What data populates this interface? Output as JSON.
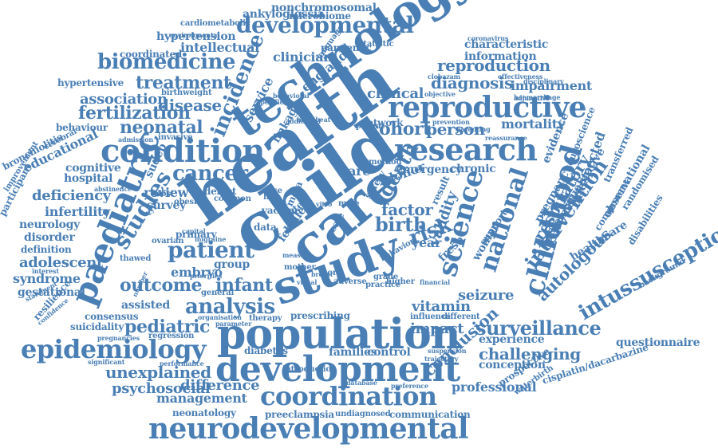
{
  "colors": {
    "word": "#4a7fb5",
    "background": "#ffffff"
  },
  "words": [
    "health",
    "child",
    "care",
    "population",
    "development",
    "study",
    "technology",
    "neurodevelopmental",
    "condition",
    "research",
    "reproductive",
    "paediatric",
    "epidemiology",
    "coordination",
    "childhood",
    "developmental",
    "science",
    "national",
    "intussusception",
    "surveillance",
    "patient",
    "studies",
    "analysis",
    "incidence",
    "cancer",
    "risk",
    "biomedicine",
    "intervention",
    "outcome",
    "infant",
    "death",
    "birth",
    "treatment",
    "neonatal",
    "pediatric",
    "cohort",
    "diagnosis",
    "reproduction",
    "fertilization",
    "association",
    "disease",
    "challenging",
    "unexplained",
    "autologous",
    "respiratory",
    "conclusion",
    "psychosocial",
    "difference",
    "management",
    "seizure",
    "vitamin",
    "impact",
    "factor",
    "person",
    "clinical",
    "clinician",
    "intellectual",
    "hypertension",
    "information",
    "characteristic",
    "impairment",
    "nonchromosomal",
    "ankyloglossia",
    "microbiome",
    "cardiometabolic",
    "coordinated",
    "hypertensive",
    "pandemic",
    "england",
    "service",
    "educational",
    "cognitive",
    "hospital",
    "deficiency",
    "infertility",
    "neurology",
    "disorder",
    "definition",
    "adolescent",
    "syndrome",
    "gestational",
    "resilience",
    "assisted",
    "consensus",
    "suicidality",
    "regression",
    "diabetes",
    "introduction",
    "families",
    "control",
    "experience",
    "questionnaire",
    "conception",
    "waterbirth",
    "prospective",
    "cisplatin/dacarbazine",
    "professional",
    "communication",
    "preeclampsia",
    "undiagnosed",
    "neonatology",
    "mortality",
    "review",
    "survey",
    "sudep",
    "rare",
    "donor",
    "year",
    "group",
    "embryo",
    "data",
    "primary",
    "defect",
    "common",
    "behaviour",
    "participant",
    "improvement",
    "bronchiolitis",
    "cerebral",
    "abstinence",
    "admission",
    "invasive",
    "birthweight",
    "neuroscience",
    "evidence",
    "pregnancy",
    "unexpected",
    "qualitative",
    "observational",
    "disabilities",
    "healthcare",
    "systematic",
    "component",
    "randomised",
    "background",
    "transferred",
    "prescribing",
    "therapy",
    "general",
    "parameter",
    "validity",
    "fresh",
    "woman",
    "support",
    "emergency",
    "chronic",
    "method",
    "safety",
    "scale",
    "result",
    "linkage",
    "vaccine",
    "rate",
    "life",
    "case",
    "male",
    "cost",
    "obesity",
    "ovarian",
    "thawed",
    "database",
    "preference",
    "suspension",
    "trajectory",
    "statement",
    "confidence",
    "significant",
    "performance",
    "pregnancies",
    "organisation",
    "influence",
    "different",
    "behavior",
    "practice",
    "adverse",
    "higher",
    "financial",
    "statistic",
    "coronavirus",
    "environmental",
    "disciplinary",
    "haemorrhage",
    "adjunctive",
    "effectiveness",
    "clobazam",
    "parenting",
    "prevention",
    "reassurance",
    "heartbeat",
    "network",
    "parent",
    "specific",
    "behavioral",
    "objective",
    "additional",
    "language",
    "capital",
    "measure",
    "visual",
    "breast",
    "mother",
    "more",
    "grade",
    "febrile",
    "meta",
    "vitro",
    "type",
    "number",
    "priorities",
    "migraine",
    "interest"
  ]
}
